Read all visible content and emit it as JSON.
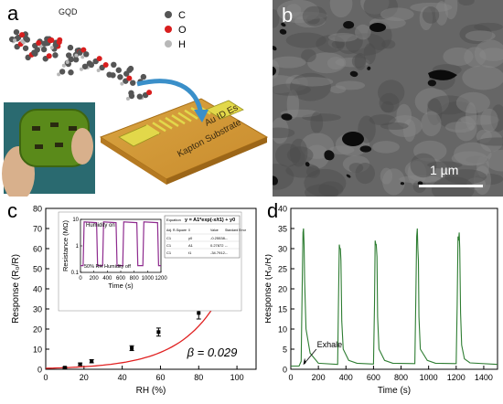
{
  "figure": {
    "panel_a": {
      "label": "a",
      "molecule_label": "GQD",
      "legend": [
        {
          "symbol": "C",
          "color": "#555555"
        },
        {
          "symbol": "O",
          "color": "#d81e1e"
        },
        {
          "symbol": "H",
          "color": "#b8b8b8"
        }
      ],
      "electrode_label": "Au ID Es",
      "substrate_label": "Kapton Substrate",
      "colors": {
        "substrate": "#d9a441",
        "electrode": "#e2d84a",
        "arrow": "#3a8fc9"
      }
    },
    "panel_b": {
      "label": "b",
      "scale_bar": "1 µm"
    },
    "panel_c": {
      "label": "c",
      "beta_text": "β = 0.029",
      "inset": {
        "humidity_on": "Humidity on",
        "humidity_off": "50% RH Humidity off",
        "table_equation_label": "Equation",
        "equation": "y = A1*exp(-x/t1) + y0",
        "table_header": [
          "Adj. R-Square",
          "0",
          "Value",
          "Standard Error"
        ],
        "table_rows": [
          [
            "C1",
            "y0",
            "-0.25538",
            "--"
          ],
          [
            "C1",
            "A1",
            "0.27872",
            "--"
          ],
          [
            "C1",
            "t1",
            "-34.7912",
            "--"
          ]
        ]
      }
    },
    "panel_d": {
      "label": "d",
      "annotation": "Exhale"
    }
  },
  "chart_data": [
    {
      "type": "scatter",
      "panel": "c",
      "title": "",
      "xlabel": "RH (%)",
      "ylabel": "Response (R₀/R)",
      "xlim": [
        0,
        110
      ],
      "ylim": [
        0,
        80
      ],
      "xticks": [
        0,
        20,
        40,
        60,
        80,
        100
      ],
      "yticks": [
        0,
        10,
        20,
        30,
        40,
        50,
        60,
        70,
        80
      ],
      "grid": false,
      "series": [
        {
          "x": [
            10,
            18,
            24,
            45,
            59,
            80,
            100
          ],
          "y": [
            0.8,
            2.5,
            4,
            10.5,
            18.5,
            28,
            55
          ],
          "err": [
            0.4,
            0.6,
            0.8,
            1.2,
            2,
            3,
            6
          ],
          "color": "#000000"
        }
      ],
      "fit": {
        "color": "#e02020",
        "model": "exponential"
      },
      "inset": {
        "type": "line",
        "xlabel": "Time (s)",
        "ylabel": "Resistance (MΩ)",
        "xlim": [
          0,
          1200
        ],
        "ylim": [
          0.1,
          10
        ],
        "yscale": "log",
        "xticks": [
          0,
          200,
          400,
          600,
          800,
          1000,
          1200
        ],
        "yticks": [
          0.1,
          1,
          10
        ],
        "color": "#8e2a8e",
        "x": [
          0,
          40,
          55,
          240,
          255,
          330,
          345,
          530,
          545,
          630,
          645,
          840,
          855,
          930,
          945,
          1150,
          1165,
          1200
        ],
        "y": [
          0.18,
          0.18,
          8,
          7.5,
          0.18,
          0.18,
          8,
          7.5,
          0.18,
          0.18,
          8,
          7.5,
          0.18,
          0.18,
          8,
          7.5,
          0.18,
          0.18
        ]
      }
    },
    {
      "type": "line",
      "panel": "d",
      "title": "",
      "xlabel": "Time (s)",
      "ylabel": "Response (R₀/R)",
      "xlim": [
        0,
        1500
      ],
      "ylim": [
        0,
        40
      ],
      "xticks": [
        0,
        200,
        400,
        600,
        800,
        1000,
        1200,
        1400
      ],
      "yticks": [
        0,
        5,
        10,
        15,
        20,
        25,
        30,
        35,
        40
      ],
      "grid": false,
      "color": "#2e7d32",
      "series": [
        {
          "x": [
            0,
            60,
            75,
            82,
            88,
            92,
            96,
            100,
            110,
            140,
            200,
            340,
            345,
            352,
            356,
            360,
            364,
            370,
            380,
            420,
            480,
            600,
            607,
            612,
            617,
            620,
            625,
            630,
            640,
            680,
            740,
            900,
            907,
            913,
            918,
            922,
            926,
            930,
            940,
            990,
            1050,
            1200,
            1207,
            1213,
            1218,
            1222,
            1226,
            1232,
            1240,
            1260,
            1300,
            1500
          ],
          "y": [
            0.8,
            0.8,
            2,
            20,
            34,
            35,
            31,
            22,
            10,
            4,
            1.5,
            1.2,
            15,
            31,
            30,
            30,
            27,
            12,
            5,
            2.2,
            1.5,
            1.3,
            16,
            32,
            31,
            31,
            28,
            13,
            5,
            2.2,
            1.5,
            1.4,
            18,
            33,
            35,
            30,
            27,
            13,
            5,
            2.2,
            1.5,
            1.4,
            16,
            33,
            32,
            34,
            30,
            14,
            6,
            2.6,
            1.6,
            1.2
          ]
        }
      ]
    }
  ]
}
